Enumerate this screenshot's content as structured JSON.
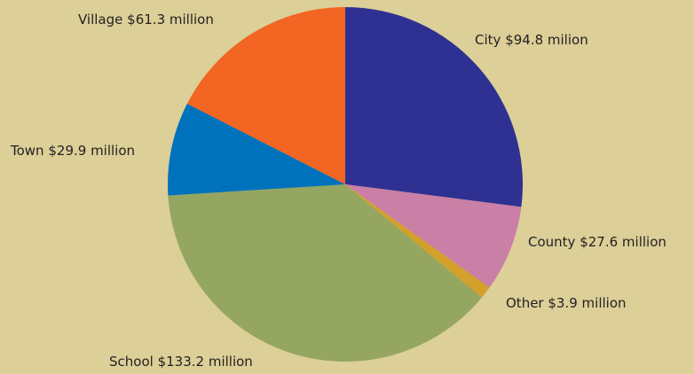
{
  "chart_data": {
    "type": "pie",
    "categories": [
      "City",
      "County",
      "Other",
      "School",
      "Town",
      "Village"
    ],
    "values": [
      94.8,
      27.6,
      3.9,
      133.2,
      29.9,
      61.3
    ],
    "value_labels": [
      "$94.8 milion",
      "$27.6 million",
      "$3.9 million",
      "$133.2 million",
      "$29.9 million",
      "$61.3 million"
    ],
    "colors": [
      "#2e3192",
      "#c97fa6",
      "#d4a02a",
      "#95a660",
      "#0072bc",
      "#f26522"
    ]
  }
}
